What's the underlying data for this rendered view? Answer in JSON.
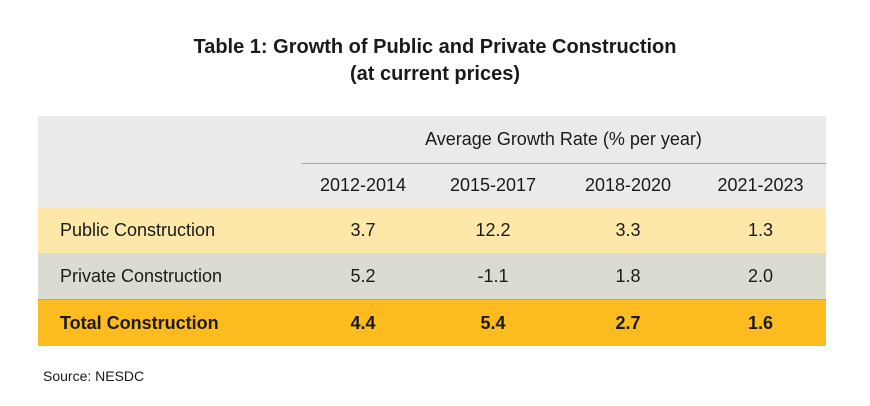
{
  "title": {
    "line1": "Table 1: Growth of Public and Private Construction",
    "line2": "(at current prices)"
  },
  "table": {
    "group_header": "Average Growth Rate (% per year)",
    "columns": [
      "2012-2014",
      "2015-2017",
      "2018-2020",
      "2021-2023"
    ],
    "rows": [
      {
        "label": "Public Construction",
        "values": [
          "3.7",
          "12.2",
          "3.3",
          "1.3"
        ]
      },
      {
        "label": "Private Construction",
        "values": [
          "5.2",
          "-1.1",
          "1.8",
          "2.0"
        ]
      },
      {
        "label": "Total Construction",
        "values": [
          "4.4",
          "5.4",
          "2.7",
          "1.6"
        ]
      }
    ]
  },
  "source": "Source: NESDC",
  "colors": {
    "header_bg": "#eceae8",
    "public_row_bg": "#fde7a9",
    "private_row_bg": "#dcdbd2",
    "total_row_bg": "#fcbb1f"
  }
}
